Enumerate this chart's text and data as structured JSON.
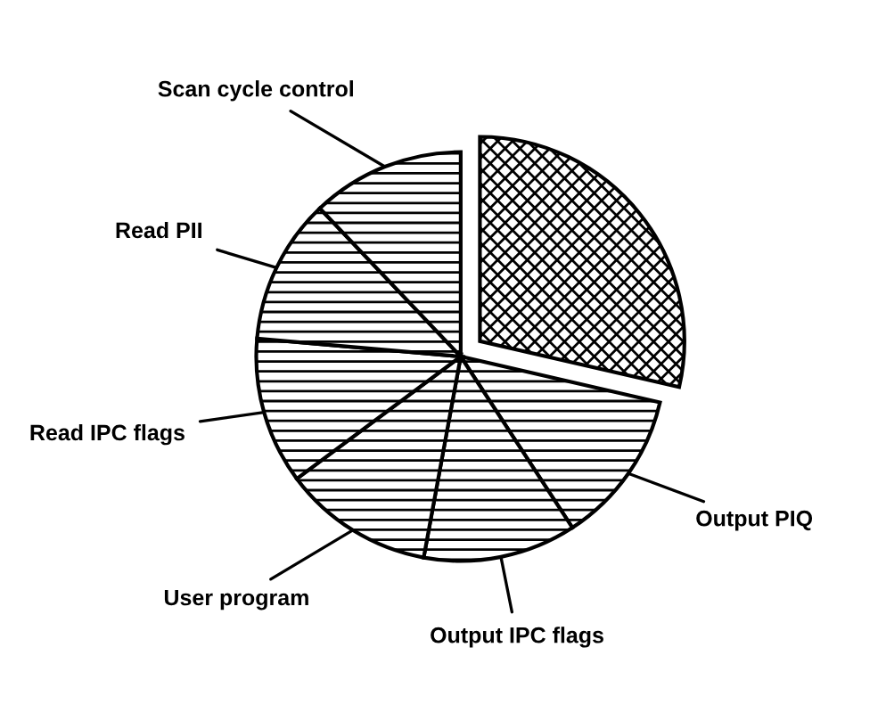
{
  "chart_data": {
    "type": "pie",
    "categories": [
      null,
      "Output PIQ",
      "Output IPC flags",
      "User program",
      "Read IPC flags",
      "Read PII",
      "Scan cycle control"
    ],
    "values": [
      28.6,
      12.2,
      12.1,
      11.9,
      11.6,
      11.5,
      12.1
    ],
    "colors": [
      "#000000",
      "#000000",
      "#000000",
      "#000000",
      "#000000",
      "#000000",
      "#000000"
    ],
    "legend": false
  }
}
